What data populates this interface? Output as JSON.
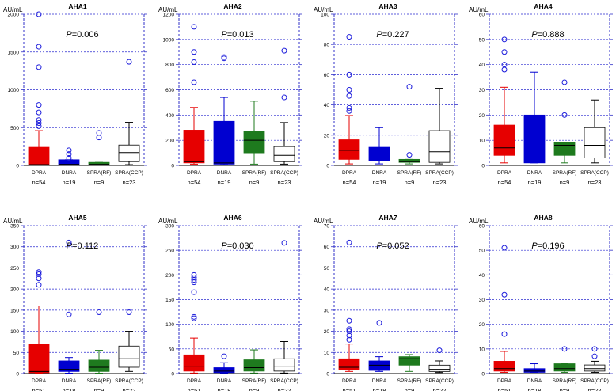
{
  "figure_title": "",
  "chart_data": [
    {
      "type": "box",
      "title": "AHA1",
      "ylabel": "AU/mL",
      "pvalue": "0.006",
      "ylim": [
        0,
        2000
      ],
      "yticks": [
        "0",
        "500",
        "1000",
        "1500",
        "2000"
      ],
      "categories": [
        "DPRA",
        "DNRA",
        "SPRA(RF)",
        "SPRA(CCP)"
      ],
      "n_labels": [
        "n=54",
        "n=19",
        "n=9",
        "n=23"
      ],
      "boxes": [
        {
          "name": "DPRA",
          "whisker_low": 10,
          "q1": 10,
          "median": 10,
          "q3": 240,
          "whisker_high": 460,
          "outliers": [
            520,
            560,
            600,
            700,
            800,
            1300,
            1570,
            2000
          ]
        },
        {
          "name": "DNRA",
          "whisker_low": 5,
          "q1": 5,
          "median": 15,
          "q3": 75,
          "whisker_high": 75,
          "outliers": [
            100,
            150,
            200
          ]
        },
        {
          "name": "SPRA(RF)",
          "whisker_low": 5,
          "q1": 5,
          "median": 15,
          "q3": 40,
          "whisker_high": 40,
          "outliers": [
            370,
            430
          ]
        },
        {
          "name": "SPRA(CCP)",
          "whisker_low": 10,
          "q1": 50,
          "median": 170,
          "q3": 270,
          "whisker_high": 570,
          "outliers": [
            1370
          ]
        }
      ]
    },
    {
      "type": "box",
      "title": "AHA2",
      "ylabel": "AU/mL",
      "pvalue": "0.013",
      "ylim": [
        0,
        1200
      ],
      "yticks": [
        "0",
        "200",
        "400",
        "600",
        "800",
        "1000",
        "1200"
      ],
      "categories": [
        "DPRA",
        "DNRA",
        "SPRA(RF)",
        "SPRA(CCP)"
      ],
      "n_labels": [
        "n=54",
        "n=19",
        "n=9",
        "n=23"
      ],
      "boxes": [
        {
          "name": "DPRA",
          "whisker_low": 10,
          "q1": 20,
          "median": 30,
          "q3": 280,
          "whisker_high": 460,
          "outliers": [
            660,
            820,
            900,
            1100
          ]
        },
        {
          "name": "DNRA",
          "whisker_low": 5,
          "q1": 10,
          "median": 20,
          "q3": 350,
          "whisker_high": 540,
          "outliers": [
            850,
            860
          ]
        },
        {
          "name": "SPRA(RF)",
          "whisker_low": 10,
          "q1": 100,
          "median": 200,
          "q3": 270,
          "whisker_high": 510,
          "outliers": []
        },
        {
          "name": "SPRA(CCP)",
          "whisker_low": 10,
          "q1": 30,
          "median": 80,
          "q3": 150,
          "whisker_high": 340,
          "outliers": [
            540,
            910
          ]
        }
      ]
    },
    {
      "type": "box",
      "title": "AHA3",
      "ylabel": "AU/mL",
      "pvalue": "0.227",
      "ylim": [
        0,
        100
      ],
      "yticks": [
        "0",
        "20",
        "40",
        "60",
        "80",
        "100"
      ],
      "categories": [
        "DPRA",
        "DNRA",
        "SPRA(RF)",
        "SPRA(CCP)"
      ],
      "n_labels": [
        "n=54",
        "n=19",
        "n=9",
        "n=23"
      ],
      "boxes": [
        {
          "name": "DPRA",
          "whisker_low": 1,
          "q1": 4,
          "median": 10,
          "q3": 17,
          "whisker_high": 33,
          "outliers": [
            36,
            38,
            46,
            50,
            60,
            85
          ]
        },
        {
          "name": "DNRA",
          "whisker_low": 1,
          "q1": 3,
          "median": 5,
          "q3": 12,
          "whisker_high": 25,
          "outliers": []
        },
        {
          "name": "SPRA(RF)",
          "whisker_low": 1,
          "q1": 2,
          "median": 2.5,
          "q3": 4,
          "whisker_high": 4,
          "outliers": [
            7,
            52
          ]
        },
        {
          "name": "SPRA(CCP)",
          "whisker_low": 1,
          "q1": 2,
          "median": 9,
          "q3": 23,
          "whisker_high": 51,
          "outliers": []
        }
      ]
    },
    {
      "type": "box",
      "title": "AHA4",
      "ylabel": "AU/mL",
      "pvalue": "0.888",
      "ylim": [
        0,
        60
      ],
      "yticks": [
        "0",
        "10",
        "20",
        "30",
        "40",
        "50",
        "60"
      ],
      "categories": [
        "DPRA",
        "DNRA",
        "SPRA(RF)",
        "SPRA(CCP)"
      ],
      "n_labels": [
        "n=54",
        "n=19",
        "n=9",
        "n=23"
      ],
      "boxes": [
        {
          "name": "DPRA",
          "whisker_low": 1,
          "q1": 4,
          "median": 7,
          "q3": 16,
          "whisker_high": 31,
          "outliers": [
            38,
            40,
            45,
            50
          ]
        },
        {
          "name": "DNRA",
          "whisker_low": 1,
          "q1": 1,
          "median": 3,
          "q3": 20,
          "whisker_high": 37,
          "outliers": []
        },
        {
          "name": "SPRA(RF)",
          "whisker_low": 1,
          "q1": 4,
          "median": 8,
          "q3": 9,
          "whisker_high": 9,
          "outliers": [
            20,
            33
          ]
        },
        {
          "name": "SPRA(CCP)",
          "whisker_low": 1,
          "q1": 3,
          "median": 8,
          "q3": 15,
          "whisker_high": 26,
          "outliers": []
        }
      ]
    },
    {
      "type": "box",
      "title": "AHA5",
      "ylabel": "AU/mL",
      "pvalue": "0.112",
      "ylim": [
        0,
        350
      ],
      "yticks": [
        "0",
        "50",
        "100",
        "150",
        "200",
        "250",
        "300",
        "350"
      ],
      "categories": [
        "DPRA",
        "DNRA",
        "SPRA(RF)",
        "SPRA(CCP)"
      ],
      "n_labels": [
        "n=51",
        "n=18",
        "n=9",
        "n=22"
      ],
      "boxes": [
        {
          "name": "DPRA",
          "whisker_low": 1,
          "q1": 2,
          "median": 5,
          "q3": 70,
          "whisker_high": 160,
          "outliers": [
            210,
            225,
            235,
            240
          ]
        },
        {
          "name": "DNRA",
          "whisker_low": 1,
          "q1": 5,
          "median": 10,
          "q3": 30,
          "whisker_high": 38,
          "outliers": [
            140,
            310
          ]
        },
        {
          "name": "SPRA(RF)",
          "whisker_low": 1,
          "q1": 5,
          "median": 15,
          "q3": 32,
          "whisker_high": 55,
          "outliers": [
            145
          ]
        },
        {
          "name": "SPRA(CCP)",
          "whisker_low": 5,
          "q1": 15,
          "median": 35,
          "q3": 65,
          "whisker_high": 100,
          "outliers": [
            145
          ]
        }
      ]
    },
    {
      "type": "box",
      "title": "AHA6",
      "ylabel": "AU/mL",
      "pvalue": "0.030",
      "ylim": [
        0,
        300
      ],
      "yticks": [
        "0",
        "50",
        "100",
        "150",
        "200",
        "250",
        "300"
      ],
      "categories": [
        "DPRA",
        "DNRA",
        "SPRA(RF)",
        "SPRA(CCP)"
      ],
      "n_labels": [
        "n=51",
        "n=18",
        "n=9",
        "n=22"
      ],
      "boxes": [
        {
          "name": "DPRA",
          "whisker_low": 1,
          "q1": 5,
          "median": 15,
          "q3": 38,
          "whisker_high": 72,
          "outliers": [
            112,
            115,
            165,
            185,
            190,
            195,
            200
          ]
        },
        {
          "name": "DNRA",
          "whisker_low": 1,
          "q1": 2,
          "median": 5,
          "q3": 12,
          "whisker_high": 22,
          "outliers": [
            35
          ]
        },
        {
          "name": "SPRA(RF)",
          "whisker_low": 1,
          "q1": 5,
          "median": 12,
          "q3": 28,
          "whisker_high": 48,
          "outliers": []
        },
        {
          "name": "SPRA(CCP)",
          "whisker_low": 1,
          "q1": 5,
          "median": 15,
          "q3": 30,
          "whisker_high": 65,
          "outliers": [
            265
          ]
        }
      ]
    },
    {
      "type": "box",
      "title": "AHA7",
      "ylabel": "AU/mL",
      "pvalue": "0.052",
      "ylim": [
        0,
        70
      ],
      "yticks": [
        "0",
        "10",
        "20",
        "30",
        "40",
        "50",
        "60",
        "70"
      ],
      "categories": [
        "DPRA",
        "DNRA",
        "SPRA(RF)",
        "SPRA(CCP)"
      ],
      "n_labels": [
        "n=51",
        "n=18",
        "n=9",
        "n=22"
      ],
      "boxes": [
        {
          "name": "DPRA",
          "whisker_low": 1,
          "q1": 2,
          "median": 3,
          "q3": 7,
          "whisker_high": 14,
          "outliers": [
            16,
            18,
            20,
            21,
            25,
            62
          ]
        },
        {
          "name": "DNRA",
          "whisker_low": 1,
          "q1": 1.5,
          "median": 4,
          "q3": 6,
          "whisker_high": 8,
          "outliers": [
            24
          ]
        },
        {
          "name": "SPRA(RF)",
          "whisker_low": 1,
          "q1": 4,
          "median": 7,
          "q3": 8,
          "whisker_high": 9,
          "outliers": []
        },
        {
          "name": "SPRA(CCP)",
          "whisker_low": 0.5,
          "q1": 1,
          "median": 2,
          "q3": 4,
          "whisker_high": 6,
          "outliers": [
            11
          ]
        }
      ]
    },
    {
      "type": "box",
      "title": "AHA8",
      "ylabel": "AU/mL",
      "pvalue": "0.196",
      "ylim": [
        0,
        60
      ],
      "yticks": [
        "0",
        "10",
        "20",
        "30",
        "40",
        "50",
        "60"
      ],
      "categories": [
        "DPRA",
        "DNRA",
        "SPRA(RF)",
        "SPRA(CCP)"
      ],
      "n_labels": [
        "n=51",
        "n=18",
        "n=9",
        "n=22"
      ],
      "boxes": [
        {
          "name": "DPRA",
          "whisker_low": 0.5,
          "q1": 1,
          "median": 2,
          "q3": 5,
          "whisker_high": 9,
          "outliers": [
            16,
            32,
            51
          ]
        },
        {
          "name": "DNRA",
          "whisker_low": 0.5,
          "q1": 0.5,
          "median": 1,
          "q3": 2,
          "whisker_high": 4,
          "outliers": []
        },
        {
          "name": "SPRA(RF)",
          "whisker_low": 0.5,
          "q1": 1,
          "median": 2,
          "q3": 4,
          "whisker_high": 4,
          "outliers": [
            10
          ]
        },
        {
          "name": "SPRA(CCP)",
          "whisker_low": 0.5,
          "q1": 1,
          "median": 2,
          "q3": 3.5,
          "whisker_high": 5,
          "outliers": [
            7,
            10
          ]
        }
      ]
    }
  ],
  "colors": {
    "box_fill": [
      "#e60000",
      "#0000d0",
      "#1e7a1e",
      "#ffffff"
    ],
    "whisker": [
      "#e60000",
      "#0000d0",
      "#1e7a1e",
      "#000000"
    ],
    "outlier": "#1a1adb",
    "grid": "#2a2ad0",
    "axis": "#3232c8",
    "text": "#000000"
  }
}
